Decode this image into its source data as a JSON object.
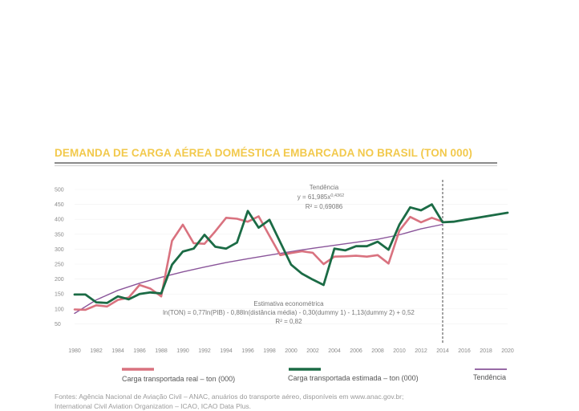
{
  "chart_data": {
    "type": "line",
    "title": "DEMANDA DE CARGA AÉREA DOMÉSTICA EMBARCADA NO BRASIL (TON 000)",
    "x_ticks": [
      "1980",
      "1982",
      "1984",
      "1986",
      "1988",
      "1990",
      "1992",
      "1994",
      "1996",
      "1998",
      "2000",
      "2002",
      "2004",
      "2006",
      "2008",
      "2010",
      "2012",
      "2014",
      "2016",
      "2018",
      "2020"
    ],
    "y_ticks": [
      "500",
      "450",
      "400",
      "350",
      "300",
      "250",
      "200",
      "150",
      "100",
      "50"
    ],
    "xlim": [
      1980,
      2020
    ],
    "ylim": [
      0,
      500
    ],
    "divider_year": 2014,
    "series": [
      {
        "name": "Carga transportada real – ton (000)",
        "color": "#d9727f",
        "x": [
          1980,
          1981,
          1982,
          1983,
          1984,
          1985,
          1986,
          1987,
          1988,
          1989,
          1990,
          1991,
          1992,
          1993,
          1994,
          1995,
          1996,
          1997,
          1998,
          1999,
          2000,
          2001,
          2002,
          2003,
          2004,
          2005,
          2006,
          2007,
          2008,
          2009,
          2010,
          2011,
          2012,
          2013,
          2014
        ],
        "values": [
          98,
          97,
          112,
          108,
          130,
          138,
          180,
          168,
          142,
          328,
          382,
          320,
          318,
          360,
          405,
          402,
          392,
          410,
          345,
          280,
          287,
          293,
          288,
          250,
          275,
          276,
          278,
          275,
          280,
          252,
          362,
          408,
          390,
          405,
          392
        ]
      },
      {
        "name": "Carga transportada estimada – ton (000)",
        "color": "#1b6b45",
        "x": [
          1980,
          1981,
          1982,
          1983,
          1984,
          1985,
          1986,
          1987,
          1988,
          1989,
          1990,
          1991,
          1992,
          1993,
          1994,
          1995,
          1996,
          1997,
          1998,
          1999,
          2000,
          2001,
          2002,
          2003,
          2004,
          2005,
          2006,
          2007,
          2008,
          2009,
          2010,
          2011,
          2012,
          2013,
          2014,
          2015,
          2016,
          2017,
          2018,
          2019,
          2020
        ],
        "values": [
          148,
          148,
          122,
          120,
          142,
          132,
          150,
          155,
          152,
          248,
          292,
          302,
          348,
          308,
          302,
          322,
          428,
          372,
          398,
          323,
          248,
          218,
          198,
          180,
          302,
          296,
          310,
          310,
          325,
          298,
          382,
          440,
          430,
          450,
          390,
          392,
          398,
          404,
          410,
          416,
          422
        ]
      },
      {
        "name": "Tendência",
        "color": "#8a559a",
        "x": [
          1980,
          1982,
          1984,
          1986,
          1988,
          1990,
          1992,
          1994,
          1996,
          1998,
          2000,
          2002,
          2004,
          2006,
          2008,
          2010,
          2012,
          2014
        ],
        "values": [
          85,
          130,
          162,
          186,
          206,
          224,
          240,
          255,
          268,
          280,
          292,
          303,
          313,
          323,
          333,
          348,
          368,
          383
        ]
      }
    ],
    "annotations": {
      "trend_title": "Tendência",
      "trend_formula": "y = 61,985x",
      "trend_exponent": "0,4362",
      "trend_r2": "R² = 0,69086",
      "econ_title": "Estimativa econométrica",
      "econ_formula": "ln(TON) = 0,77ln(PIB) - 0,88ln(distância média) - 0,30(dummy 1) - 1,13(dummy 2) + 0,52",
      "econ_r2": "R² = 0,82"
    }
  },
  "legend": {
    "real": {
      "label": "Carga transportada real – ton (000)",
      "color": "#d9727f"
    },
    "estimated": {
      "label": "Carga transportada estimada – ton (000)",
      "color": "#1b6b45"
    },
    "trend": {
      "label": "Tendência",
      "color": "#8a559a"
    }
  },
  "source": {
    "line1": "Fontes: Agência Nacional de Aviação Civil – ANAC, anuários do transporte aéreo, disponíveis em www.anac.gov.br;",
    "line2": "International Civil Aviation Organization – ICAO, ICAO Data Plus."
  }
}
